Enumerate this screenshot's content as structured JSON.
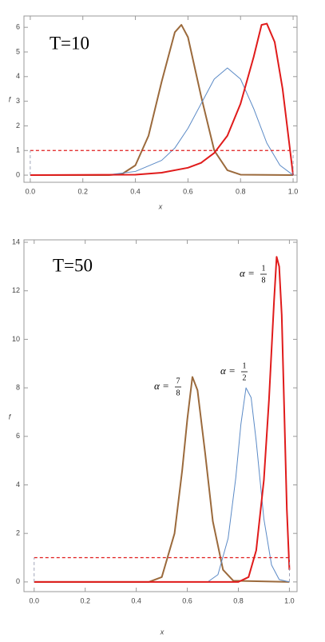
{
  "chart_data": [
    {
      "type": "line",
      "title": "T=10",
      "xlabel": "x",
      "ylabel": "f",
      "xlim": [
        -0.024,
        1.015
      ],
      "ylim": [
        -0.29,
        6.46
      ],
      "xticks": [
        {
          "value": 0,
          "label": "0.0"
        },
        0.2,
        0.4,
        0.6,
        0.8,
        {
          "value": 1,
          "label": "1.0"
        }
      ],
      "yticks": [
        0,
        1,
        2,
        3,
        4,
        5,
        6
      ],
      "series": [
        {
          "color": "#9b6a3c",
          "width": 2,
          "x": [
            0,
            0.3,
            0.35,
            0.4,
            0.45,
            0.5,
            0.55,
            0.575,
            0.6,
            0.65,
            0.7,
            0.75,
            0.8,
            1
          ],
          "values": [
            0,
            0,
            0.05,
            0.4,
            1.6,
            3.8,
            5.8,
            6.1,
            5.6,
            3.2,
            1.0,
            0.2,
            0.02,
            0
          ]
        },
        {
          "color": "#5b8ac6",
          "width": 1,
          "x": [
            0,
            0.3,
            0.4,
            0.5,
            0.55,
            0.6,
            0.65,
            0.7,
            0.75,
            0.8,
            0.85,
            0.9,
            0.95,
            1
          ],
          "values": [
            0,
            0.02,
            0.15,
            0.6,
            1.1,
            1.9,
            2.9,
            3.9,
            4.35,
            3.9,
            2.7,
            1.3,
            0.4,
            0
          ]
        },
        {
          "color": "#e01b1b",
          "width": 2,
          "x": [
            0,
            0.4,
            0.5,
            0.6,
            0.65,
            0.7,
            0.75,
            0.8,
            0.85,
            0.88,
            0.9,
            0.93,
            0.96,
            1
          ],
          "values": [
            0,
            0.02,
            0.1,
            0.3,
            0.5,
            0.9,
            1.6,
            2.9,
            4.8,
            6.1,
            6.15,
            5.4,
            3.5,
            0
          ]
        },
        {
          "color": "#e01b1b",
          "width": 1.3,
          "dash": true,
          "x": [
            0,
            1
          ],
          "values": [
            1,
            1
          ]
        },
        {
          "color": "#8a8fa8",
          "width": 0.8,
          "dash": true,
          "x": [
            0,
            0
          ],
          "values": [
            0,
            1
          ]
        },
        {
          "color": "#8a8fa8",
          "width": 0.8,
          "dash": true,
          "x": [
            1,
            1
          ],
          "values": [
            0,
            1
          ]
        }
      ]
    },
    {
      "type": "line",
      "title": "T=50",
      "xlabel": "x",
      "ylabel": "f",
      "xlim": [
        -0.04,
        1.03
      ],
      "ylim": [
        -0.4,
        14.1
      ],
      "xticks": [
        {
          "value": 0,
          "label": "0.0"
        },
        0.2,
        0.4,
        0.6,
        0.8,
        {
          "value": 1,
          "label": "1.0"
        }
      ],
      "yticks": [
        0,
        2,
        4,
        6,
        8,
        10,
        12,
        14
      ],
      "annotations": [
        {
          "text": "α =",
          "numerator": "7",
          "denominator": "8"
        },
        {
          "text": "α =",
          "numerator": "1",
          "denominator": "2"
        },
        {
          "text": "α =",
          "numerator": "1",
          "denominator": "8"
        }
      ],
      "series": [
        {
          "color": "#9b6a3c",
          "width": 2,
          "x": [
            0,
            0.45,
            0.5,
            0.55,
            0.58,
            0.6,
            0.62,
            0.64,
            0.67,
            0.7,
            0.74,
            0.78,
            1
          ],
          "values": [
            0,
            0,
            0.2,
            2.0,
            4.6,
            6.7,
            8.45,
            7.9,
            5.3,
            2.5,
            0.5,
            0.05,
            0
          ]
        },
        {
          "color": "#5b8ac6",
          "width": 1,
          "x": [
            0,
            0.68,
            0.72,
            0.76,
            0.79,
            0.81,
            0.83,
            0.85,
            0.87,
            0.9,
            0.93,
            0.96,
            1
          ],
          "values": [
            0,
            0,
            0.3,
            1.8,
            4.3,
            6.5,
            8.0,
            7.6,
            5.8,
            2.6,
            0.7,
            0.1,
            0
          ]
        },
        {
          "color": "#e01b1b",
          "width": 2,
          "x": [
            0,
            0.8,
            0.84,
            0.87,
            0.9,
            0.92,
            0.94,
            0.95,
            0.96,
            0.97,
            0.98,
            0.99,
            1
          ],
          "values": [
            0,
            0,
            0.2,
            1.3,
            4.2,
            7.5,
            11.6,
            13.4,
            13.0,
            11.0,
            7.0,
            3.0,
            0.5
          ]
        },
        {
          "color": "#e01b1b",
          "width": 1.3,
          "dash": true,
          "x": [
            0,
            1
          ],
          "values": [
            1,
            1
          ]
        },
        {
          "color": "#8a8fa8",
          "width": 0.8,
          "dash": true,
          "x": [
            0,
            0
          ],
          "values": [
            0,
            1
          ]
        },
        {
          "color": "#8a8fa8",
          "width": 0.8,
          "dash": true,
          "x": [
            1,
            1
          ],
          "values": [
            0,
            1
          ]
        }
      ]
    }
  ]
}
